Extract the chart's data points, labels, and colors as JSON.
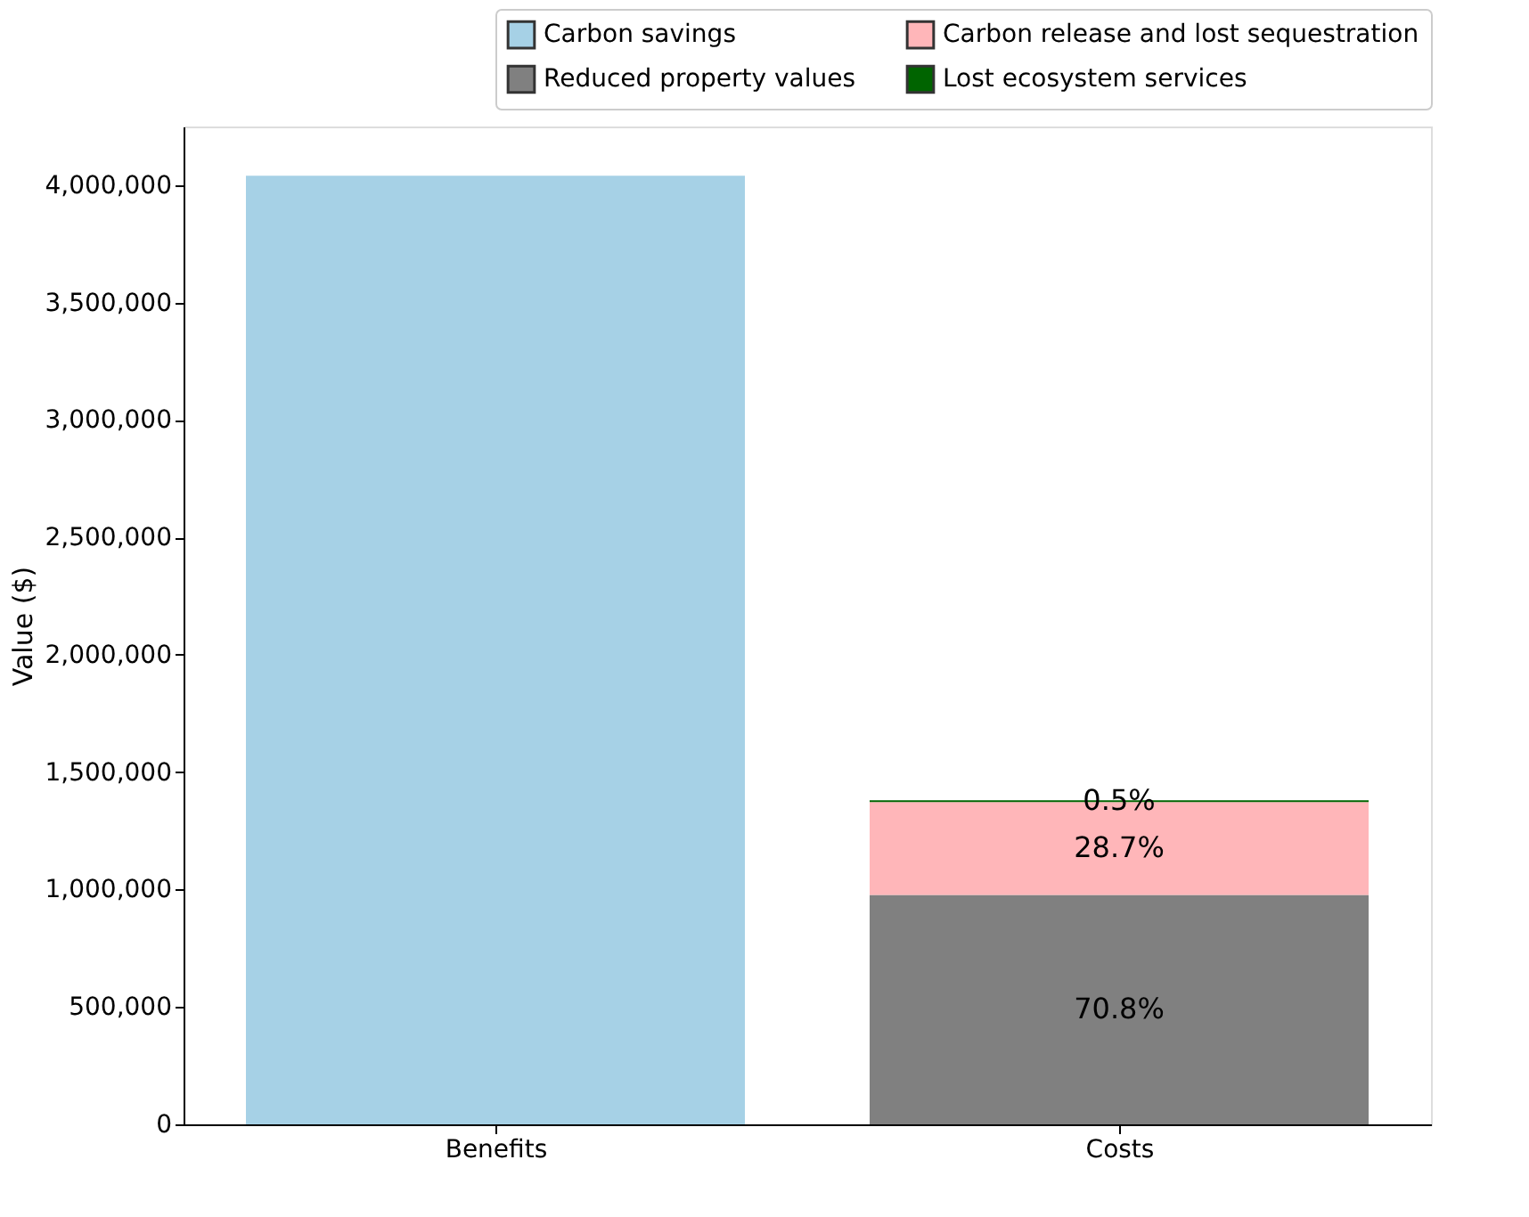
{
  "chart_data": {
    "type": "bar",
    "stacked": true,
    "ylabel": "Value ($)",
    "categories": [
      "Benefits",
      "Costs"
    ],
    "series": [
      {
        "name": "Carbon savings",
        "color": "#a6d1e6",
        "values": [
          4040000,
          null
        ]
      },
      {
        "name": "Reduced property values",
        "color": "#808080",
        "values": [
          null,
          977000
        ]
      },
      {
        "name": "Carbon release and lost sequestration",
        "color": "#ffb6b9",
        "values": [
          null,
          396000
        ]
      },
      {
        "name": "Lost ecosystem services",
        "color": "#006400",
        "values": [
          null,
          7000
        ]
      }
    ],
    "annotations": [
      "70.8%",
      "28.7%",
      "0.5%"
    ],
    "ylim": [
      0,
      4250000
    ],
    "yticks": [
      0,
      {
        "value": 500000,
        "label": "500,000"
      },
      {
        "value": 1000000,
        "label": "1,000,000"
      },
      {
        "value": 1500000,
        "label": "1,500,000"
      },
      {
        "value": 2000000,
        "label": "2,000,000"
      },
      {
        "value": 2500000,
        "label": "2,500,000"
      },
      {
        "value": 3000000,
        "label": "3,000,000"
      },
      {
        "value": 3500000,
        "label": "3,500,000"
      },
      {
        "value": 4000000,
        "label": "4,000,000"
      }
    ],
    "grid": false,
    "legend": "top right"
  }
}
